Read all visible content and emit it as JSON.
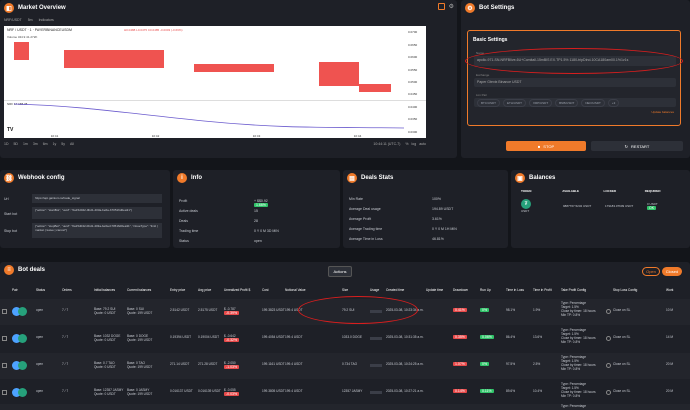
{
  "market": {
    "title": "Market Overview",
    "symbol": "NRF/USDT",
    "interval": "5m",
    "indicators": "Indicators",
    "pair_line": "NRF / USDT · 1 · PAYERBINANCEUSDM",
    "ohlc": "H0.0488 L0.0475 C0.0485 -0.0003 (-0.66%)",
    "volume": "Volume  344.9  41.272K",
    "price_axis": [
      "0.0700",
      "0.0650",
      "0.0600",
      "0.0550",
      "0.0500",
      "0.0450",
      "0.0400",
      "0.0350",
      "0.0300"
    ],
    "time_axis": [
      "10:41",
      "10:42",
      "10:43",
      "10:44"
    ],
    "periods": [
      "1D",
      "5D",
      "1m",
      "3m",
      "6m",
      "1y",
      "5y",
      "All"
    ],
    "clock": "10:44:11 (UTC-7)",
    "mode_opts": [
      "%",
      "log",
      "auto"
    ],
    "volume_label": "NRF 14 158.38"
  },
  "bot_settings": {
    "title": "Bot Settings",
    "section_title": "Basic Settings",
    "name_label": "Name",
    "name_value": "apollo-971-SN-NRFBIive-6U+Comitall-15mBIS EX.TP1.5% 1180-tripDInd-10CA180am00.1%1v1s",
    "exchange_label": "Exchange",
    "exchange_value": "Paper Gtextx Binance USDT",
    "lim_pair_label": "Lim Pair",
    "chips": [
      "BTC/USDT",
      "ETH/USDT",
      "XRP/USDT",
      "BNB/USDT",
      "NEO/USDT",
      "+3"
    ],
    "update_balances": "Update balances",
    "stop_label": "STOP",
    "restart_label": "RESTART"
  },
  "webhook": {
    "title": "Webhook config",
    "url_label": "Url",
    "url_value": "https://api.gainium.io/trade_signal",
    "start_label": "Start bot",
    "start_value": "{\"action\": \"startBot\", \"uuid\": \"0a15d042-0bd1-403a-be6a-b70516d0ea31\"}",
    "stop_label": "Stop bot",
    "stop_value": "{\"action\": \"stopBot\", \"uuid\": \"0a15d042-0bd1-403a-be6a-b70516d0ea31\", \"closeType\": \"limit | market | leave | cancel\"}"
  },
  "info": {
    "title": "Info",
    "rows": [
      {
        "k": "Profit",
        "v": "+ $$0.92",
        "b": "1.66%"
      },
      {
        "k": "Active deals",
        "v": "15"
      },
      {
        "k": "Deals",
        "v": "28"
      },
      {
        "k": "Trading time",
        "v": "0 Y 0 M 3D MIN"
      },
      {
        "k": "Status",
        "v": "open"
      }
    ]
  },
  "deals_stats": {
    "title": "Deals Stats",
    "rows": [
      {
        "k": "Min Rate",
        "v": "100%"
      },
      {
        "k": "Average Deal usage",
        "v": "194.89 USDT"
      },
      {
        "k": "Average Profit",
        "v": "3.61%"
      },
      {
        "k": "Average Trading time",
        "v": "0 Y 0 M 1H MIN"
      },
      {
        "k": "Average Time in Loss",
        "v": "46.81%"
      }
    ]
  },
  "balances": {
    "title": "Balances",
    "headers": [
      "TOKEN",
      "AVAILABLE",
      "LOCKED",
      "REQUIRED"
    ],
    "token": "USDT",
    "available": "9887767.5232 USDT",
    "locked": "179183.07609 USDT",
    "required": "0 USDT",
    "required_badge": "OK"
  },
  "bot_deals": {
    "title": "Bot deals",
    "actions_label": "Actions",
    "open_label": "Open",
    "closed_label": "Closed",
    "headers": [
      "Pair",
      "Status",
      "Orders",
      "Initial balances",
      "Current balances",
      "Entry price",
      "Avg price",
      "Unrealized Profit $",
      "Cost",
      "Notional Value",
      "Size",
      "Usage",
      "Created time",
      "Update time",
      "Drawdown",
      "Run Up",
      "Time in Loss",
      "Time in Profit",
      "Take Profit Config",
      "Stop Loss Config",
      "Work"
    ],
    "rows": [
      {
        "status": "open",
        "orders": "7 / 7",
        "init": [
          "Base: 79.2 SUI",
          "Quote: 0 USDT"
        ],
        "cur": [
          "Base: 0 SUI",
          "Quote: 199 USDT"
        ],
        "entry": "2.5142 USDT",
        "avg": "2.5175 USDT",
        "profit": "$ -0.787",
        "pct": "-0.39%",
        "cost": "199.3823 USDT",
        "notional": "199.4 USDT",
        "size": "79.2 SUI",
        "created": "2025-03-08, 10:23:34 a.m.",
        "dd": "0.41%",
        "ru": "0%",
        "loss": "98.1%",
        "prof": "1.9%",
        "tp": [
          "Type: Percentage",
          "Target: 1.5%",
          "Close by timer: 18 hours",
          "Min TP: 0.8%"
        ],
        "sl": "Close on SL",
        "work": "10 M"
      },
      {
        "status": "open",
        "orders": "7 / 7",
        "init": [
          "Base: 1032 DOGE",
          "Quote: 0 USDT"
        ],
        "cur": [
          "Base: 0 DOGE",
          "Quote: 199 USDT"
        ],
        "entry": "0.19394 USDT",
        "avg": "0.19004 USDT",
        "profit": "$ -0.642",
        "pct": "-0.32%",
        "cost": "199.4054 USDT",
        "notional": "199.4 USDT",
        "size": "1033.0 DOGE",
        "created": "2025-03-08, 10:31:35 a.m.",
        "dd": "0.35%",
        "ru": "0.06%",
        "loss": "86.4%",
        "prof": "13.6%",
        "tp": [
          "Type: Percentage",
          "Target: 1.5%",
          "Close by timer: 18 hours",
          "Min TP: 0.8%"
        ],
        "sl": "Close on SL",
        "work": "14 M"
      },
      {
        "status": "open",
        "orders": "7 / 7",
        "init": [
          "Base: 0.7 TAO",
          "Quote: 0 USDT"
        ],
        "cur": [
          "Base: 0 TAO",
          "Quote: 199 USDT"
        ],
        "entry": "271.14 USDT",
        "avg": "271.28 USDT",
        "profit": "$ -2.050",
        "pct": "-1.03%",
        "cost": "199.1161 USDT",
        "notional": "199.4 USDT",
        "size": "0.734 TAO",
        "created": "2025-03-08, 10:24:25 a.m.",
        "dd": "1.07%",
        "ru": "0%",
        "loss": "97.5%",
        "prof": "2.5%",
        "tp": [
          "Type: Percentage",
          "Target: 1.5%",
          "Close by timer: 18 hours",
          "Min TP: 0.8%"
        ],
        "sl": "Close on SL",
        "work": "20 M"
      },
      {
        "status": "open",
        "orders": "7 / 7",
        "init": [
          "Base: 12357 JASMY",
          "Quote: 0 USDT"
        ],
        "cur": [
          "Base: 0 JASMY",
          "Quote: 199 USDT"
        ],
        "entry": "0.016137 USDT",
        "avg": "0.016139 USDT",
        "profit": "$ -0.055",
        "pct": "-0.03%",
        "cost": "199.3805 USDT",
        "notional": "199.4 USDT",
        "size": "12357 JASMY",
        "created": "2025-03-08, 10:27:21 a.m.",
        "dd": "0.14%",
        "ru": "0.11%",
        "loss": "89.6%",
        "prof": "10.4%",
        "tp": [
          "Type: Percentage",
          "Target: 1.5%",
          "Close by timer: 18 hours",
          "Min TP: 0.8%"
        ],
        "sl": "Close on SL",
        "work": "20 M"
      }
    ],
    "partial_row_tp": "Type: Percentage"
  },
  "colors": {
    "accent": "#f07a2a",
    "panel": "#1e2027",
    "bg": "#13151a",
    "green": "#31c46a",
    "red": "#e84a4a",
    "annotation": "#d81e1e"
  }
}
